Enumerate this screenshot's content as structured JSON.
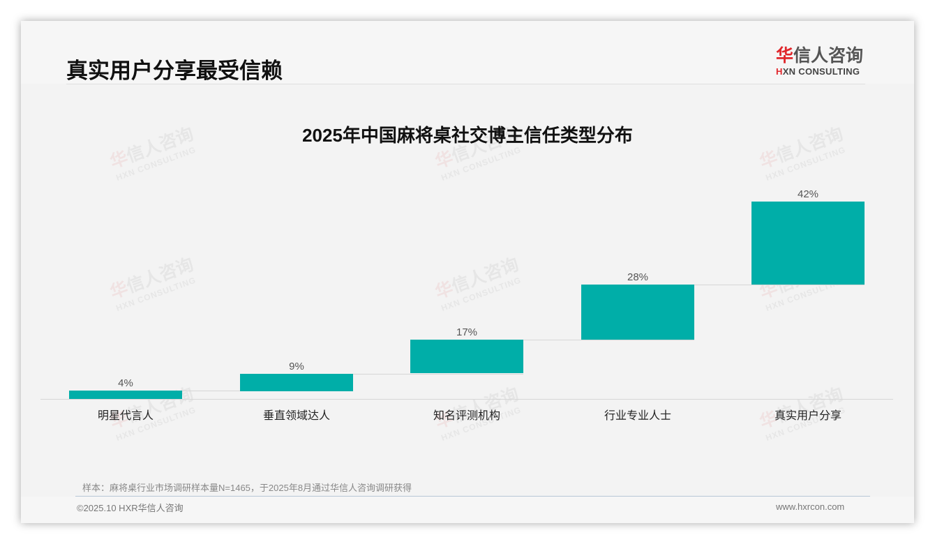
{
  "header": {
    "title": "真实用户分享最受信赖",
    "logo": {
      "cn_first": "华",
      "cn_rest": "信人咨询",
      "en_first": "H",
      "en_rest": "XN CONSULTING",
      "accent_color": "#e0262b"
    }
  },
  "watermark": {
    "cn_first": "华",
    "cn_rest": "信人咨询",
    "en": "HXN CONSULTING"
  },
  "chart_data": {
    "type": "bar",
    "subtype": "waterfall",
    "title": "2025年中国麻将桌社交博主信任类型分布",
    "xlabel": "",
    "ylabel": "",
    "categories": [
      "明星代言人",
      "垂直领域达人",
      "知名评测机构",
      "行业专业人士",
      "真实用户分享"
    ],
    "values": [
      4,
      9,
      17,
      28,
      42
    ],
    "value_labels": [
      "4%",
      "9%",
      "17%",
      "28%",
      "42%"
    ],
    "unit": "%",
    "bar_color": "#00aea8",
    "grid": false,
    "legend": "none",
    "ylim": [
      0,
      100
    ]
  },
  "footer": {
    "note": "样本：麻将桌行业市场调研样本量N=1465，于2025年8月通过华信人咨询调研获得",
    "copyright": "©2025.10 HXR华信人咨询",
    "website": "www.hxrcon.com"
  }
}
